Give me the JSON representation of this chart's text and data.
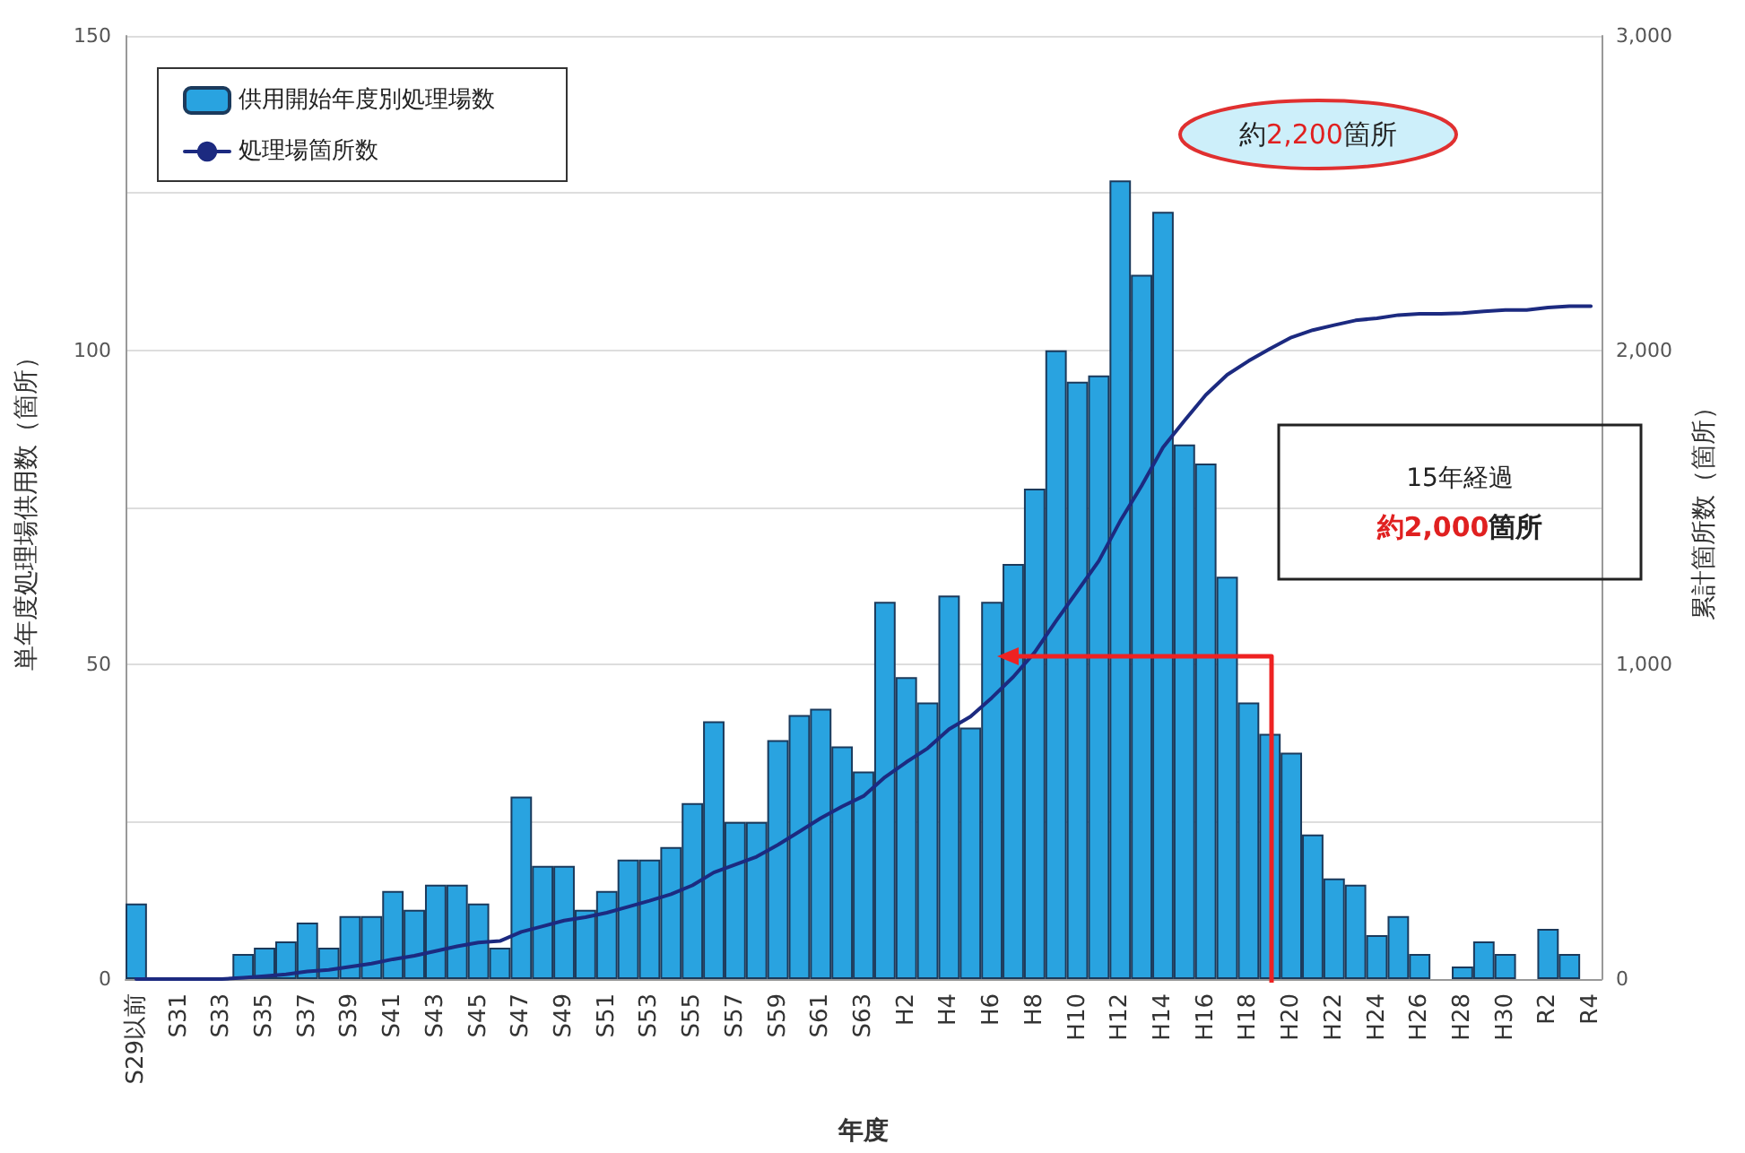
{
  "chart_data": {
    "type": "bar",
    "xlabel": "年度",
    "ylabel": "単年度処理場供用数（箇所）",
    "y2label": "累計箇所数（箇所）",
    "categories": [
      "S29以前",
      null,
      "S31",
      null,
      "S33",
      null,
      "S35",
      null,
      "S37",
      null,
      "S39",
      null,
      "S41",
      null,
      "S43",
      null,
      "S45",
      null,
      "S47",
      null,
      "S49",
      null,
      "S51",
      null,
      "S53",
      null,
      "S55",
      null,
      "S57",
      null,
      "S59",
      null,
      "S61",
      null,
      "S63",
      null,
      "H2",
      null,
      "H4",
      null,
      "H6",
      null,
      "H8",
      null,
      "H10",
      null,
      "H12",
      null,
      "H14",
      null,
      "H16",
      null,
      "H18",
      null,
      "H20",
      null,
      "H22",
      null,
      "H24",
      null,
      "H26",
      null,
      "H28",
      null,
      "H30",
      null,
      "R2",
      null,
      "R4"
    ],
    "series": [
      {
        "name": "供用開始年度別処理場数",
        "color": "#29a3e0",
        "values": [
          12,
          0,
          0,
          0,
          0,
          4,
          5,
          6,
          9,
          5,
          10,
          10,
          14,
          11,
          15,
          15,
          12,
          5,
          29,
          18,
          18,
          11,
          14,
          19,
          19,
          21,
          28,
          41,
          25,
          25,
          38,
          42,
          43,
          37,
          33,
          60,
          48,
          44,
          61,
          40,
          60,
          66,
          78,
          100,
          95,
          96,
          127,
          112,
          122,
          85,
          82,
          64,
          44,
          39,
          36,
          23,
          16,
          15,
          7,
          10,
          4,
          0,
          2,
          6,
          4,
          0,
          8,
          4,
          0
        ]
      },
      {
        "name": "処理場箇所数",
        "type": "line",
        "axis": "y2",
        "color": "#1c2a80",
        "values": [
          0,
          0,
          0,
          0,
          0,
          4,
          9,
          15,
          24,
          29,
          39,
          49,
          63,
          74,
          89,
          104,
          116,
          121,
          150,
          168,
          186,
          197,
          211,
          230,
          249,
          270,
          298,
          339,
          364,
          389,
          427,
          469,
          512,
          549,
          582,
          642,
          690,
          734,
          795,
          835,
          895,
          961,
          1039,
          1139,
          1234,
          1330,
          1457,
          1569,
          1691,
          1776,
          1858,
          1922,
          1966,
          2005,
          2041,
          2064,
          2080,
          2095,
          2102,
          2112,
          2116,
          2116,
          2118,
          2124,
          2128,
          2128,
          2136,
          2140,
          2140
        ]
      }
    ],
    "ylim": [
      0,
      150
    ],
    "yticks": [
      0,
      {
        "value": 25,
        "label": null
      },
      50,
      {
        "value": 75,
        "label": null
      },
      100,
      {
        "value": 125,
        "label": null
      },
      150
    ],
    "y2lim": [
      0,
      3000
    ],
    "y2ticks": [
      0,
      {
        "value": 1000,
        "label": "1,000"
      },
      {
        "value": 2000,
        "label": "2,000"
      },
      {
        "value": 3000,
        "label": "3,000"
      }
    ],
    "grid": "y",
    "legend": "top left",
    "marker": "none",
    "annotations": [
      "約2,200箇所",
      "15年経過",
      "約2,000箇所"
    ]
  }
}
